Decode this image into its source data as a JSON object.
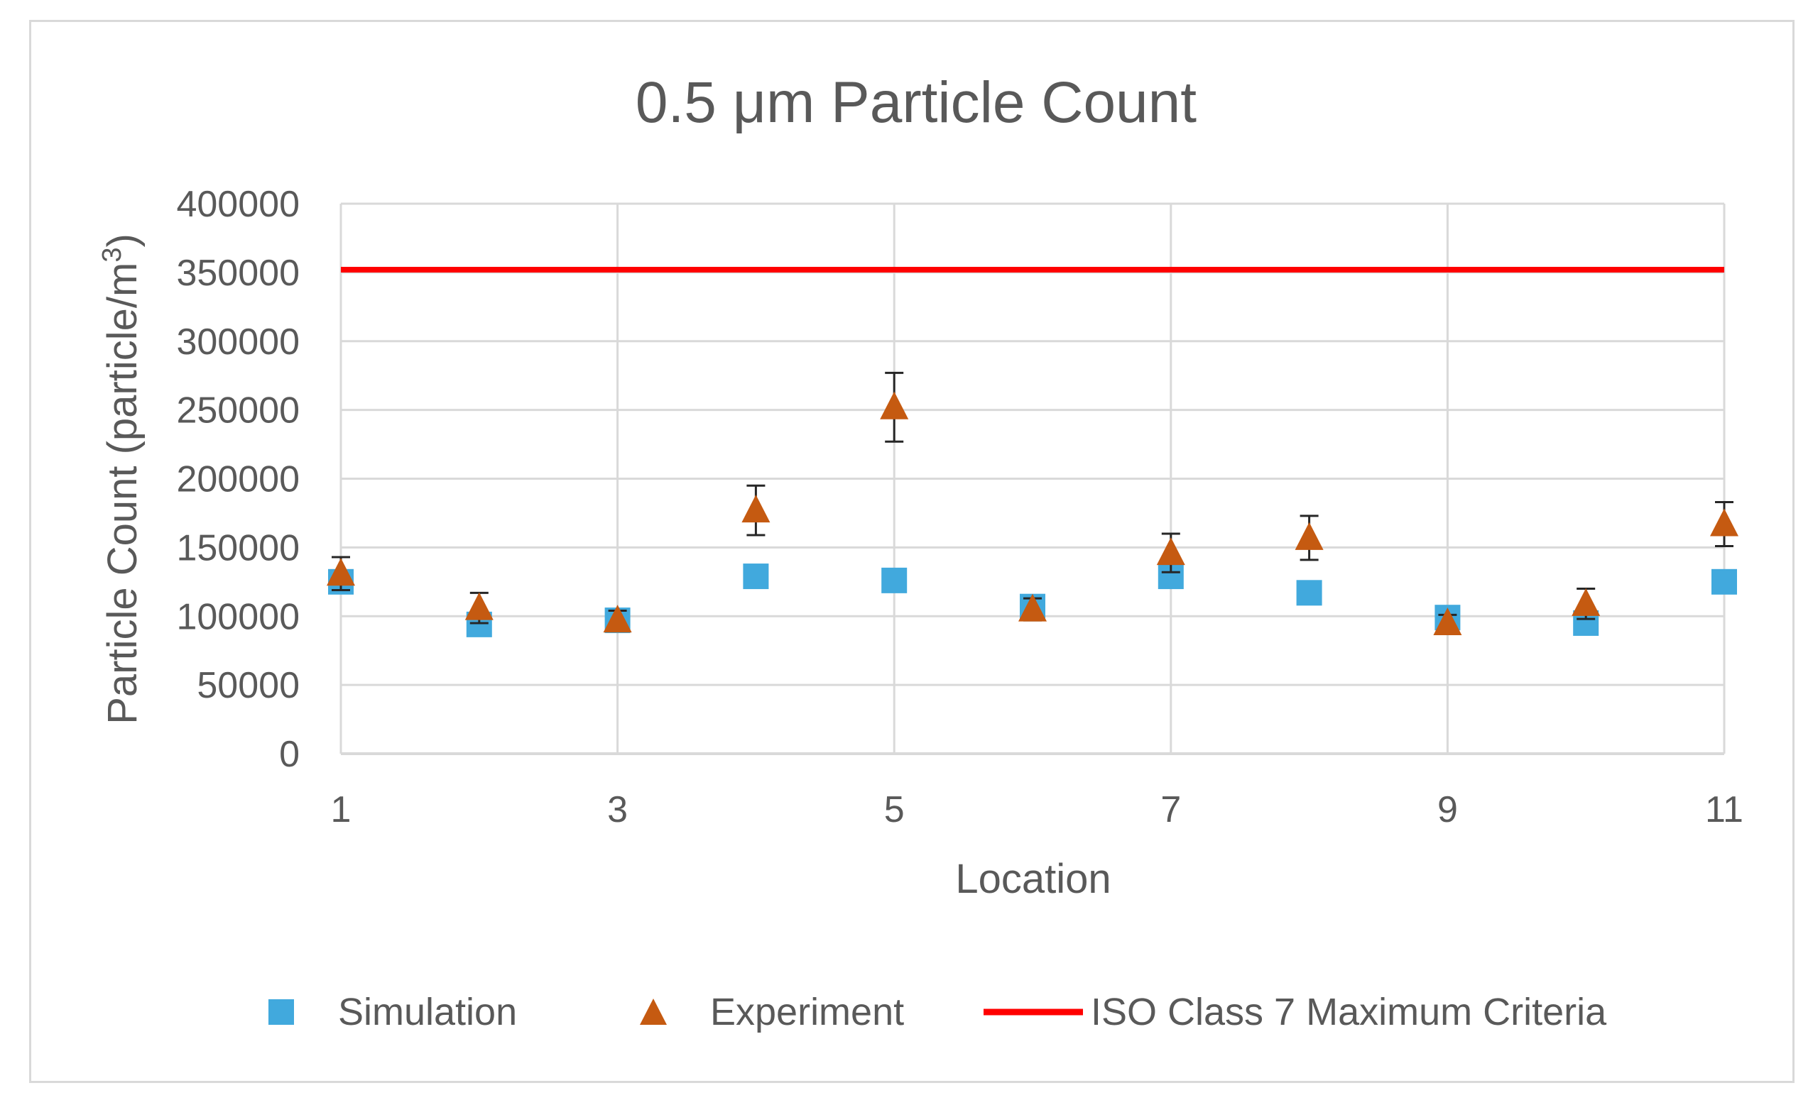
{
  "chart_data": {
    "type": "scatter",
    "title": "0.5 μm Particle Count",
    "xlabel": "Location",
    "ylabel": "Particle Count (particle/m",
    "ylabel_superscript": "3",
    "ylabel_suffix": ")",
    "xlim": [
      1,
      11
    ],
    "ylim": [
      0,
      400000
    ],
    "x_ticks": [
      1,
      3,
      5,
      7,
      9,
      11
    ],
    "y_ticks": [
      0,
      50000,
      100000,
      150000,
      200000,
      250000,
      300000,
      350000,
      400000
    ],
    "x_tick_labels": [
      "1",
      "3",
      "5",
      "7",
      "9",
      "11"
    ],
    "y_tick_labels": [
      "0",
      "50000",
      "100000",
      "150000",
      "200000",
      "250000",
      "300000",
      "350000",
      "400000"
    ],
    "grid": true,
    "legend_position": "bottom",
    "series": [
      {
        "name": "Simulation",
        "marker": "square",
        "color": "#41a9dd",
        "x": [
          1,
          2,
          3,
          4,
          5,
          6,
          7,
          8,
          9,
          10,
          11
        ],
        "y": [
          125000,
          94000,
          97000,
          129000,
          126000,
          107000,
          129000,
          117000,
          99000,
          95000,
          125000
        ]
      },
      {
        "name": "Experiment",
        "marker": "triangle",
        "color": "#c55a11",
        "x": [
          1,
          2,
          3,
          4,
          5,
          6,
          7,
          8,
          9,
          10,
          11
        ],
        "y": [
          131000,
          106000,
          97000,
          177000,
          252000,
          105000,
          146000,
          157000,
          95000,
          109000,
          167000
        ],
        "error": [
          12000,
          11000,
          7000,
          18000,
          25000,
          8000,
          14000,
          16000,
          6000,
          11000,
          16000
        ]
      },
      {
        "name": "ISO Class 7 Maximum Criteria",
        "marker": "line",
        "color": "#ff0000",
        "x": [
          1,
          11
        ],
        "y": [
          352000,
          352000
        ]
      }
    ]
  }
}
